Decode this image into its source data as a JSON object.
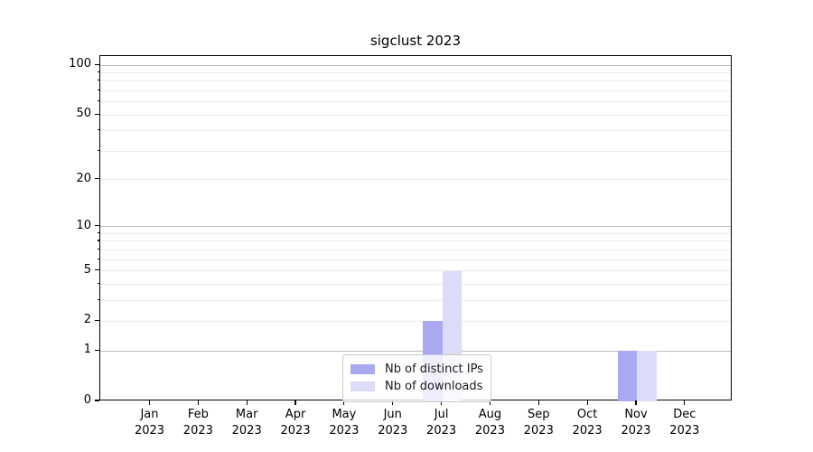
{
  "title": "sigclust 2023",
  "colors": {
    "bar_ips": "#a9a9f2",
    "bar_downloads": "#dcdcf9",
    "grid_major": "#bdbdbd",
    "grid_minor": "#ececec",
    "spine": "#000000",
    "text": "#1a1a1a",
    "legend_border": "#c9c9c9"
  },
  "chart_data": {
    "type": "bar",
    "title": "sigclust 2023",
    "categories": [
      "Jan 2023",
      "Feb 2023",
      "Mar 2023",
      "Apr 2023",
      "May 2023",
      "Jun 2023",
      "Jul 2023",
      "Aug 2023",
      "Sep 2023",
      "Oct 2023",
      "Nov 2023",
      "Dec 2023"
    ],
    "series": [
      {
        "name": "Nb of distinct IPs",
        "color_key": "bar_ips",
        "values": [
          0,
          0,
          0,
          0,
          0,
          0,
          2,
          0,
          0,
          0,
          1,
          0
        ]
      },
      {
        "name": "Nb of downloads",
        "color_key": "bar_downloads",
        "values": [
          0,
          0,
          0,
          0,
          0,
          0,
          5,
          0,
          0,
          0,
          1,
          0
        ]
      }
    ],
    "xlabel": "",
    "ylabel": "",
    "yscale": "log1p",
    "ylim": [
      0,
      113.5
    ],
    "ytick_values": [
      0,
      1,
      2,
      5,
      10,
      20,
      50,
      100
    ],
    "ytick_labels": [
      "0",
      "1",
      "2",
      "5",
      "10",
      "20",
      "50",
      "100"
    ],
    "grid_major_values": [
      1,
      10,
      100
    ],
    "grid_minor_values": [
      2,
      3,
      4,
      5,
      6,
      7,
      8,
      9,
      20,
      30,
      40,
      50,
      60,
      70,
      80,
      90
    ],
    "grid": "both",
    "legend_position": "lower center"
  }
}
